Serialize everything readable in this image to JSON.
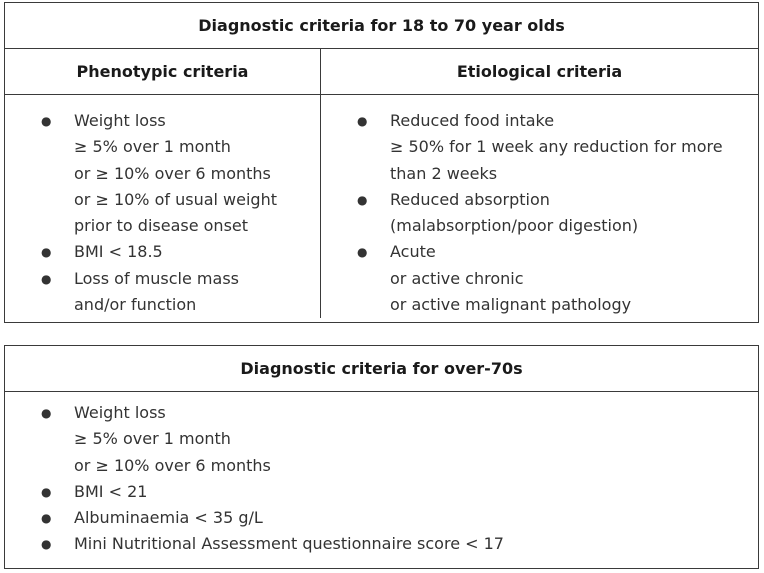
{
  "young": {
    "title": "Diagnostic criteria for 18 to 70 year olds",
    "phenotypic": {
      "heading": "Phenotypic criteria",
      "items": [
        {
          "lines": [
            "Weight loss",
            "≥ 5% over 1 month",
            "or ≥ 10% over 6 months",
            "or ≥ 10% of usual weight",
            "prior to disease onset"
          ]
        },
        {
          "lines": [
            "BMI < 18.5"
          ]
        },
        {
          "lines": [
            "Loss of muscle mass",
            "and/or function"
          ]
        }
      ]
    },
    "etiological": {
      "heading": "Etiological criteria",
      "items": [
        {
          "lines": [
            "Reduced food intake",
            "≥ 50% for 1 week any reduction for more",
            "than 2 weeks"
          ]
        },
        {
          "lines": [
            "Reduced absorption",
            "(malabsorption/poor digestion)"
          ]
        },
        {
          "lines": [
            "Acute",
            "or active chronic",
            "or active malignant pathology"
          ]
        }
      ]
    }
  },
  "old": {
    "title": "Diagnostic criteria for over-70s",
    "items": [
      {
        "lines": [
          "Weight loss",
          "≥ 5% over 1 month",
          "or ≥ 10% over 6 months"
        ]
      },
      {
        "lines": [
          "BMI < 21"
        ]
      },
      {
        "lines": [
          "Albuminaemia < 35 g/L"
        ]
      },
      {
        "lines": [
          "Mini Nutritional Assessment questionnaire score < 17"
        ]
      }
    ]
  },
  "bullet_glyph": "●"
}
